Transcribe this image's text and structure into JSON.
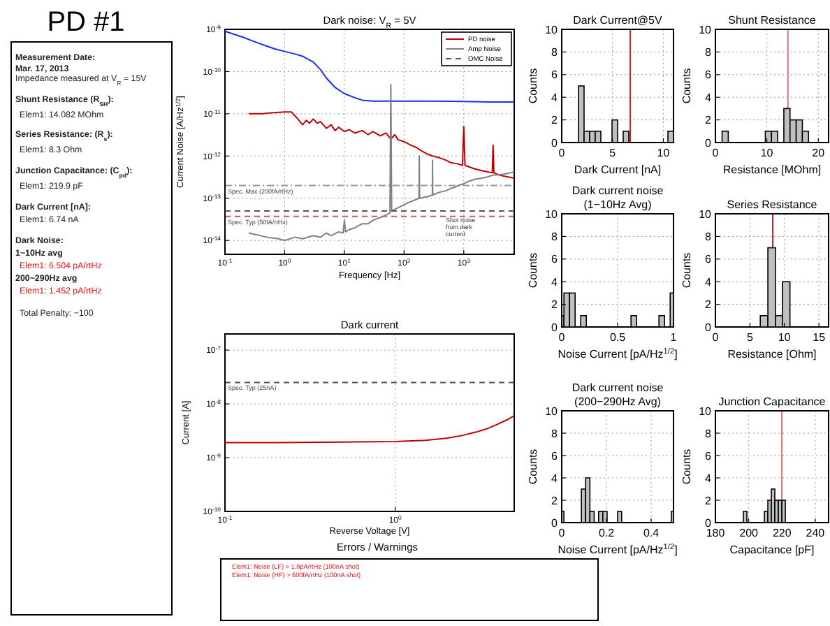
{
  "chart_data": [
    {
      "type": "other",
      "title": "PD #1",
      "annotations": [
        "Measurement Date:",
        "Mar. 17, 2013",
        "Impedance measured at V$_{R}$ = 15V",
        "Shunt Resistance (R$_{SH}$):",
        "Elem1: 14.082 MOhm",
        "Series Resistance: (R$_{s}$):",
        "Elem1: 8.3 Ohm",
        "Junction Capacitance: (C$_{pd}$):",
        "Elem1: 219.9 pF",
        "Dark Current [nA]:",
        "Elem1: 6.74 nA",
        "Dark Noise:",
        "1~10Hz avg",
        "Elem1: 6.504 pA/rtHz",
        "200~290Hz avg",
        "Elem1: 1.452 pA/rtHz",
        "Total Penalty: −100"
      ]
    },
    {
      "type": "line",
      "title": "Dark noise: V$_{R}$ = 5V",
      "xlabel": "Frequency [Hz]",
      "ylabel": "Current Noise [A/Hz$^{1/2}$]",
      "log": "xy",
      "grid": true,
      "legend": "top right",
      "xlim": [
        0.1,
        7000
      ],
      "ylim": [
        4.7e-15,
        1e-09
      ],
      "xticks": [
        {
          "value": 0.1,
          "label": "10$^{-1}$"
        },
        {
          "value": 1,
          "label": "10$^{0}$"
        },
        {
          "value": 10,
          "label": "10$^{1}$"
        },
        {
          "value": 100,
          "label": "10$^{2}$"
        },
        {
          "value": 1000,
          "label": "10$^{3}$"
        }
      ],
      "yticks": [
        {
          "value": 1e-14,
          "label": "10$^{-14}$"
        },
        {
          "value": 1e-13,
          "label": "10$^{-13}$"
        },
        {
          "value": 1e-12,
          "label": "10$^{-12}$"
        },
        {
          "value": 1e-11,
          "label": "10$^{-11}$"
        },
        {
          "value": 1e-10,
          "label": "10$^{-10}$"
        },
        {
          "value": 1e-09,
          "label": "10$^{-9}$"
        }
      ],
      "series": [
        {
          "color": "#1a2cff",
          "x": [
            0.1,
            0.2,
            0.3,
            0.5,
            0.7,
            1,
            1.5,
            2,
            3,
            4,
            5,
            7,
            10,
            15,
            20,
            30,
            50,
            100,
            300,
            1000,
            3000,
            7000
          ],
          "values": [
            9e-10,
            6.5e-10,
            5.2e-10,
            4e-10,
            3.4e-10,
            3e-10,
            2.6e-10,
            2.3e-10,
            1.7e-10,
            1.1e-10,
            7e-11,
            4.2e-11,
            3e-11,
            2.4e-11,
            2.1e-11,
            2e-11,
            2e-11,
            2e-11,
            2e-11,
            1.95e-11,
            1.9e-11,
            1.9e-11
          ]
        },
        {
          "name": "PD noise",
          "color": "#c00000",
          "x": [
            0.25,
            0.4,
            0.6,
            1,
            1.3,
            1.6,
            2,
            2.3,
            2.6,
            3,
            3.5,
            4,
            5,
            6,
            7,
            8,
            10,
            12,
            15,
            20,
            25,
            30,
            40,
            50,
            60,
            70,
            80,
            100,
            130,
            160,
            200,
            250,
            300,
            400,
            500,
            600,
            800,
            950,
            1000,
            1050,
            1500,
            2000,
            3000,
            3100,
            3200,
            4000,
            5000,
            7000
          ],
          "values": [
            1e-11,
            1e-11,
            1.05e-11,
            1.1e-11,
            1.1e-11,
            8e-12,
            5.5e-12,
            7e-12,
            6e-12,
            7.5e-12,
            6e-12,
            6.5e-12,
            4.5e-12,
            5.5e-12,
            4e-12,
            4.8e-12,
            3.8e-12,
            4.2e-12,
            3.5e-12,
            4e-12,
            3.2e-12,
            3.8e-12,
            3e-12,
            3.5e-12,
            2.5e-12,
            3.2e-12,
            2.4e-12,
            2.2e-12,
            1.8e-12,
            1.6e-12,
            1.3e-12,
            1.1e-12,
            1e-12,
            9e-13,
            8e-13,
            7e-13,
            6.5e-13,
            6e-13,
            5e-12,
            6e-13,
            5e-13,
            4.5e-13,
            4e-13,
            1.8e-12,
            4e-13,
            3.5e-13,
            3.3e-13,
            3e-13
          ]
        },
        {
          "name": "Amp Noise",
          "color": "#808080",
          "x": [
            0.25,
            0.5,
            0.8,
            1,
            1.5,
            2,
            3,
            4,
            5,
            6,
            8,
            9.5,
            10,
            10.5,
            12,
            15,
            20,
            25,
            30,
            40,
            50,
            58,
            60,
            62,
            80,
            100,
            120,
            150,
            178,
            180,
            182,
            250,
            298,
            300,
            302,
            400,
            500,
            600,
            700,
            800,
            900,
            1000,
            1200,
            1500,
            2000,
            2500,
            3000,
            4000,
            5000,
            6000,
            7000
          ],
          "values": [
            1.5e-14,
            1.2e-14,
            1.1e-14,
            1e-14,
            1.2e-14,
            1.1e-14,
            1.3e-14,
            1.2e-14,
            1.5e-14,
            1.3e-14,
            1.6e-14,
            1.5e-14,
            3e-14,
            1.6e-14,
            1.8e-14,
            2e-14,
            2.5e-14,
            2.5e-14,
            3e-14,
            3.5e-14,
            4e-14,
            4.5e-14,
            5e-11,
            5e-14,
            6e-14,
            7e-14,
            8e-14,
            9e-14,
            1e-13,
            1e-12,
            1e-13,
            1.1e-13,
            1.2e-13,
            8e-13,
            1.2e-13,
            1.4e-13,
            1.5e-13,
            1.7e-13,
            1.8e-13,
            2e-13,
            2.1e-13,
            2.2e-13,
            2.5e-13,
            2.8e-13,
            3e-13,
            3.2e-13,
            3.5e-13,
            3.6e-13,
            3.8e-13,
            4e-13,
            4.2e-13
          ]
        },
        {
          "name": "OMC Noise",
          "color": "#555555",
          "line_style": "dashed",
          "x": [
            0.1,
            7000
          ],
          "values": [
            5e-14,
            5e-14
          ]
        }
      ],
      "ref_lines": [
        {
          "axis": "y",
          "value": 2e-13,
          "label": "Spec. Max (200fA/rtHz)",
          "color": "#999999",
          "line_style": "dashdot"
        },
        {
          "axis": "y",
          "value": 3.7e-14,
          "label": "Spec. Typ (50fA/rtHz)",
          "color": "#e05050",
          "line_style": "dashed"
        }
      ],
      "annotations": [
        {
          "text": "Shot noise from dark current",
          "x": 500,
          "y": 2.7e-14
        }
      ]
    },
    {
      "type": "histogram",
      "title": "Dark Current@5V",
      "xlabel": "Dark Current [nA]",
      "ylabel": "Counts",
      "grid": true,
      "xlim": [
        0,
        11
      ],
      "ylim": [
        0,
        10
      ],
      "xticks": [
        0,
        5,
        10
      ],
      "yticks": [
        0,
        2,
        4,
        6,
        8,
        10
      ],
      "color": "#c0c0c0",
      "bins": [
        0,
        0.55,
        1.1,
        1.65,
        2.2,
        2.75,
        3.3,
        3.85,
        4.4,
        4.95,
        5.5,
        6.05,
        6.6,
        7.15,
        7.7,
        8.25,
        8.8,
        9.35,
        9.9,
        10.45,
        11
      ],
      "values": [
        0,
        0,
        0,
        5,
        1,
        1,
        1,
        0,
        0,
        2,
        0,
        1,
        0,
        0,
        0,
        0,
        0,
        0,
        0,
        1
      ],
      "ref_lines": [
        {
          "axis": "x",
          "value": 6.74,
          "color": "#d62020"
        }
      ]
    },
    {
      "type": "histogram",
      "title": "Shunt Resistance",
      "xlabel": "Resistance [MOhm]",
      "ylabel": "Counts",
      "grid": true,
      "xlim": [
        0,
        22
      ],
      "ylim": [
        0,
        10
      ],
      "xticks": [
        0,
        10,
        20
      ],
      "yticks": [
        0,
        2,
        4,
        6,
        8,
        10
      ],
      "color": "#c0c0c0",
      "bins": [
        0.1,
        1.3,
        2.5,
        3.7,
        4.9,
        6.1,
        7.3,
        8.5,
        9.7,
        10.9,
        12.1,
        13.3,
        14.5,
        15.7,
        16.9,
        18.1
      ],
      "values": [
        0,
        1,
        0,
        0,
        0,
        0,
        0,
        0,
        1,
        1,
        0,
        3,
        2,
        2,
        1
      ],
      "ref_lines": [
        {
          "axis": "x",
          "value": 14.082,
          "color": "#e07070"
        }
      ]
    },
    {
      "type": "histogram",
      "title": "Dark current noise",
      "subtitle": "(1−10Hz Avg)",
      "xlabel": "Noise Current [pA/Hz$^{1/2}$]",
      "ylabel": "Counts",
      "grid": true,
      "xlim": [
        0,
        1
      ],
      "ylim": [
        0,
        10
      ],
      "xticks": [
        0,
        0.5,
        1
      ],
      "yticks": [
        0,
        2,
        4,
        6,
        8,
        10
      ],
      "color": "#c0c0c0",
      "bins": [
        0,
        0.02,
        0.07,
        0.12,
        0.17,
        0.22,
        0.62,
        0.67,
        0.87,
        0.92,
        0.97,
        1
      ],
      "values": [
        1,
        3,
        3,
        0,
        1,
        0,
        1,
        0,
        1,
        0,
        3
      ]
    },
    {
      "type": "histogram",
      "title": "Series Resistance",
      "xlabel": "Resistance [Ohm]",
      "ylabel": "Counts",
      "grid": true,
      "xlim": [
        0,
        16.4
      ],
      "ylim": [
        0,
        10
      ],
      "xticks": [
        0,
        5,
        10,
        15
      ],
      "yticks": [
        0,
        2,
        4,
        6,
        8,
        10
      ],
      "color": "#c0c0c0",
      "bins": [
        6.5,
        7.6,
        8.7,
        9.7,
        10.8
      ],
      "values": [
        1,
        7,
        1,
        4
      ],
      "ref_lines": [
        {
          "axis": "x",
          "value": 8.3,
          "color": "#d62020"
        }
      ]
    },
    {
      "type": "line",
      "title": "Dark current",
      "xlabel": "Reverse Voltage [V]",
      "ylabel": "Current [A]",
      "log": "xy",
      "grid": true,
      "xlim": [
        0.1,
        5
      ],
      "ylim": [
        1e-10,
        2e-07
      ],
      "xticks": [
        {
          "value": 0.1,
          "label": "10$^{-1}$"
        },
        {
          "value": 1,
          "label": "10$^{0}$"
        }
      ],
      "yticks": [
        {
          "value": 1e-10,
          "label": "10$^{-10}$"
        },
        {
          "value": 1e-09,
          "label": "10$^{-9}$"
        },
        {
          "value": 1e-08,
          "label": "10$^{-8}$"
        },
        {
          "value": 1e-07,
          "label": "10$^{-7}$"
        }
      ],
      "series": [
        {
          "color": "#c00000",
          "x": [
            0.1,
            0.2,
            0.5,
            1,
            1.5,
            2,
            2.5,
            3,
            3.5,
            4,
            4.5,
            5
          ],
          "values": [
            1.9e-09,
            1.9e-09,
            1.95e-09,
            2e-09,
            2.1e-09,
            2.3e-09,
            2.6e-09,
            3e-09,
            3.5e-09,
            4.2e-09,
            5e-09,
            6e-09
          ]
        }
      ],
      "ref_lines": [
        {
          "axis": "y",
          "value": 2.5e-08,
          "label": "Spec. Typ (25nA)",
          "color": "#555555",
          "line_style": "dashed"
        }
      ]
    },
    {
      "type": "histogram",
      "title": "Dark current noise",
      "subtitle": "(200−290Hz Avg)",
      "xlabel": "Noise Current [pA/Hz$^{1/2}$]",
      "ylabel": "Counts",
      "grid": true,
      "xlim": [
        0,
        0.5
      ],
      "ylim": [
        0,
        10
      ],
      "xticks": [
        0,
        0.2,
        0.4
      ],
      "yticks": [
        0,
        2,
        4,
        6,
        8,
        10
      ],
      "color": "#c0c0c0",
      "bins": [
        0,
        0.01,
        0.088,
        0.107,
        0.126,
        0.145,
        0.165,
        0.184,
        0.203,
        0.25,
        0.268,
        0.49,
        0.5
      ],
      "values": [
        1,
        0,
        3,
        4,
        1,
        0,
        1,
        1,
        0,
        1,
        0,
        1
      ]
    },
    {
      "type": "histogram",
      "title": "Junction Capacitance",
      "xlabel": "Capacitance [pF]",
      "ylabel": "Counts",
      "grid": true,
      "xlim": [
        180,
        248
      ],
      "ylim": [
        0,
        10
      ],
      "xticks": [
        180,
        200,
        220,
        240
      ],
      "yticks": [
        0,
        2,
        4,
        6,
        8,
        10
      ],
      "color": "#c0c0c0",
      "bins": [
        196.8,
        198.9,
        201,
        203.1,
        205.2,
        207.3,
        209.4,
        211.5,
        213.6,
        215.7,
        217.8,
        219.9,
        222
      ],
      "values": [
        1,
        0,
        0,
        0,
        0,
        0,
        1,
        2,
        3,
        2,
        2,
        2
      ],
      "ref_lines": [
        {
          "axis": "x",
          "value": 219.9,
          "color": "#e07070"
        }
      ]
    },
    {
      "type": "other",
      "title": "Errors / Warnings",
      "annotations": [
        "Elem1: Noise (LF) > 1.8pA/rtHz (100nA shot)",
        "Elem1: Noise (HF) > 600fA/rtHz (100nA shot)"
      ]
    }
  ]
}
